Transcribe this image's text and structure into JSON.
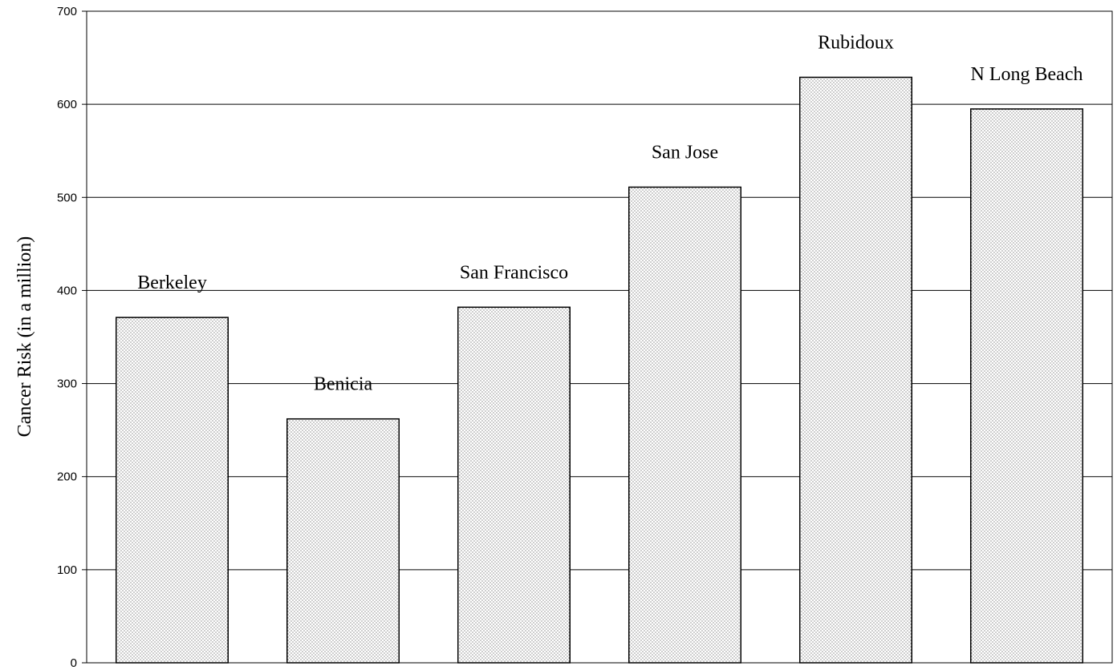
{
  "chart_data": {
    "type": "bar",
    "categories": [
      "Berkeley",
      "Benicia",
      "San Francisco",
      "San Jose",
      "Rubidoux",
      "N Long Beach"
    ],
    "values": [
      371,
      262,
      382,
      511,
      629,
      595
    ],
    "ylabel": "Cancer Risk (in a million)",
    "xlabel": "",
    "ylim": [
      0,
      700
    ],
    "yticks": [
      0,
      100,
      200,
      300,
      400,
      500,
      600,
      700
    ],
    "yticks_labels": [
      "0",
      "100",
      "200",
      "300",
      "400",
      "500",
      "600",
      "700"
    ],
    "grid": true,
    "bar_pattern": "stippled dots",
    "colors": {
      "bar_fill": "#ffffff",
      "bar_dots": "#555555",
      "gridline": "#000000"
    }
  }
}
